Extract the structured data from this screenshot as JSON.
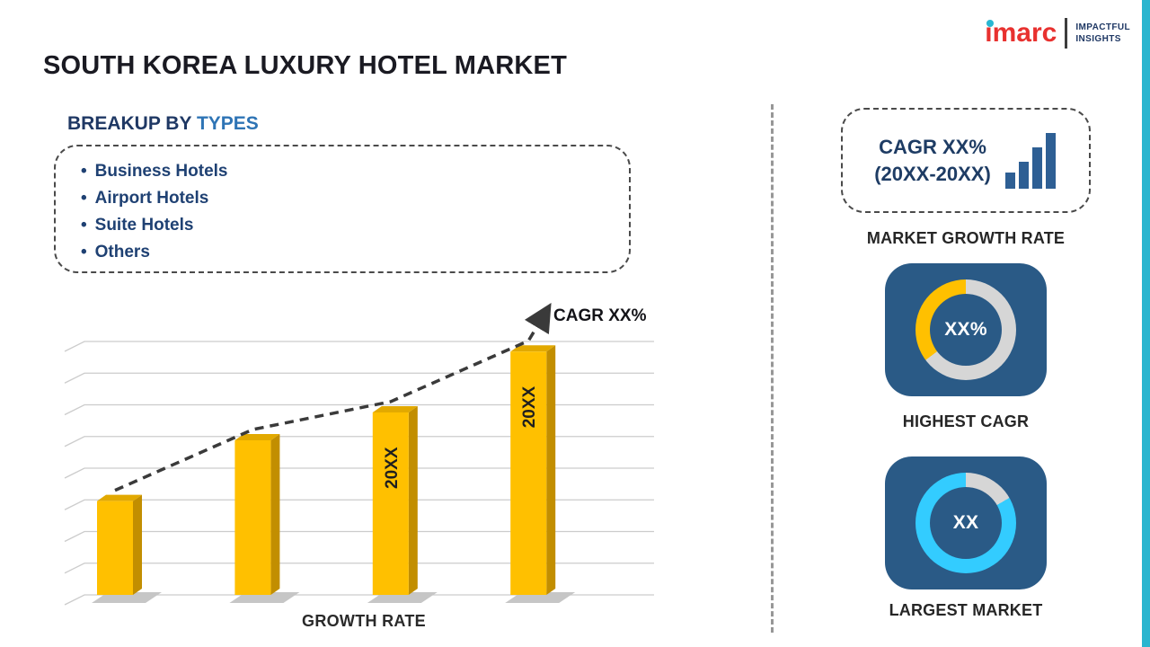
{
  "header": {
    "title": "SOUTH KOREA LUXURY HOTEL MARKET"
  },
  "logo": {
    "brand": "imarc",
    "tagline_line1": "IMPACTFUL",
    "tagline_line2": "INSIGHTS"
  },
  "breakup": {
    "heading_prefix": "BREAKUP BY ",
    "heading_highlight": "TYPES",
    "bullet_char": "•",
    "items": [
      "Business Hotels",
      "Airport Hotels",
      "Suite Hotels",
      "Others"
    ]
  },
  "chart_data": {
    "type": "bar",
    "title": "",
    "xlabel": "GROWTH RATE",
    "ylabel": "",
    "categories": [
      "",
      "",
      "20XX",
      "20XX"
    ],
    "values": [
      37,
      61,
      72,
      96
    ],
    "ylim": [
      0,
      100
    ],
    "grid": true,
    "gridline_count": 9,
    "trend_label": "CAGR XX%",
    "legend": "none",
    "bar_color": "#FFC000",
    "bar_side_color": "#C28E00",
    "bar_top_color": "#E2A900",
    "bar_label_color": "#1F1F1F",
    "trend_color": "#3A3A3A"
  },
  "right_panel": {
    "growth_box": {
      "line1": "CAGR XX%",
      "line2": "(20XX-20XX)"
    },
    "growth_caption": "MARKET GROWTH RATE",
    "highest_cagr": {
      "value": "XX%",
      "caption": "HIGHEST CAGR",
      "accent": "#FFC000"
    },
    "largest_market": {
      "value": "XX",
      "caption": "LARGEST MARKET",
      "accent": "#33CCFF"
    }
  },
  "accent_bar_color": "#2AB5CF"
}
